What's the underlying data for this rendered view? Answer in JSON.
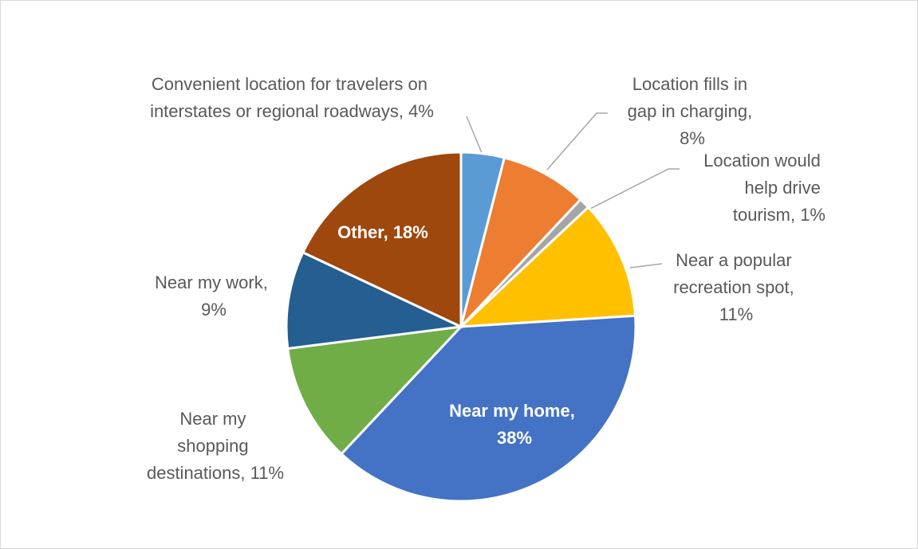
{
  "chart_data": {
    "type": "pie",
    "values": [
      4,
      8,
      1,
      11,
      38,
      11,
      9,
      18
    ],
    "value_labels": [
      "Convenient location for travelers on interstates or regional roadways, 4%",
      "Location fills in gap in charging, 8%",
      "Location would help drive tourism, 1%",
      "Near a popular recreation spot, 11%",
      "Near my home, 38%",
      "Near my shopping destinations, 11%",
      "Near my work, 9%",
      "Other, 18%"
    ],
    "colors": [
      "#5b9bd5",
      "#ed7d31",
      "#a5a5a5",
      "#ffc000",
      "#4472c4",
      "#70ad47",
      "#255e91",
      "#9e480e"
    ]
  }
}
